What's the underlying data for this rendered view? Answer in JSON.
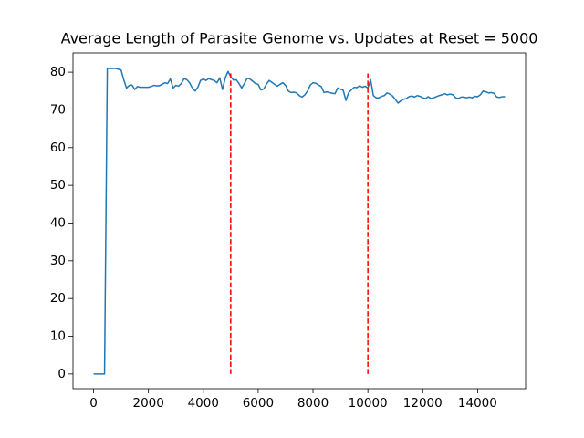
{
  "chart_data": {
    "type": "line",
    "title": "Average Length of Parasite Genome vs. Updates at Reset = 5000",
    "x": [
      0,
      100,
      200,
      300,
      400,
      500,
      600,
      700,
      800,
      900,
      1000,
      1100,
      1200,
      1300,
      1400,
      1500,
      1600,
      1700,
      1800,
      1900,
      2000,
      2100,
      2200,
      2300,
      2400,
      2500,
      2600,
      2700,
      2800,
      2900,
      3000,
      3100,
      3200,
      3300,
      3400,
      3500,
      3600,
      3700,
      3800,
      3900,
      4000,
      4100,
      4200,
      4300,
      4400,
      4500,
      4600,
      4700,
      4800,
      4900,
      5000,
      5100,
      5200,
      5300,
      5400,
      5500,
      5600,
      5700,
      5800,
      5900,
      6000,
      6100,
      6200,
      6300,
      6400,
      6500,
      6600,
      6700,
      6800,
      6900,
      7000,
      7100,
      7200,
      7300,
      7400,
      7500,
      7600,
      7700,
      7800,
      7900,
      8000,
      8100,
      8200,
      8300,
      8400,
      8500,
      8600,
      8700,
      8800,
      8900,
      9000,
      9100,
      9200,
      9300,
      9400,
      9500,
      9600,
      9700,
      9800,
      9900,
      10000,
      10100,
      10200,
      10300,
      10400,
      10500,
      10600,
      10700,
      10800,
      10900,
      11000,
      11100,
      11200,
      11300,
      11400,
      11500,
      11600,
      11700,
      11800,
      11900,
      12000,
      12100,
      12200,
      12300,
      12400,
      12500,
      12600,
      12700,
      12800,
      12900,
      13000,
      13100,
      13200,
      13300,
      13400,
      13500,
      13600,
      13700,
      13800,
      13900,
      14000,
      14100,
      14200,
      14300,
      14400,
      14500,
      14600,
      14700,
      14800,
      14900,
      15000
    ],
    "series": [
      {
        "color": "#1f77b4",
        "values": [
          0,
          0,
          0,
          0,
          0,
          81,
          81,
          81,
          81,
          80.8,
          80.6,
          78,
          75.8,
          76.5,
          76.6,
          75.4,
          76.2,
          76,
          76,
          76,
          76,
          76.2,
          76.5,
          76.4,
          76.4,
          76.8,
          77.2,
          77,
          78.2,
          75.8,
          76.5,
          76.3,
          77,
          78.3,
          78,
          77.2,
          75.8,
          75,
          76,
          77.8,
          78.2,
          77.8,
          78.3,
          78,
          77.8,
          77.2,
          78.5,
          75.4,
          78.5,
          80.2,
          78.8,
          77.9,
          78,
          77,
          75.8,
          77,
          78.4,
          78.2,
          77.6,
          77,
          76.8,
          75.3,
          75.5,
          76.8,
          77.8,
          77.3,
          76.8,
          76.3,
          76.8,
          77.2,
          76.5,
          75,
          74.6,
          74.7,
          74.5,
          73.8,
          73.4,
          74,
          75,
          76.6,
          77.2,
          77.1,
          76.6,
          76.2,
          74.6,
          74.8,
          74.6,
          74.4,
          74.3,
          75.8,
          75.5,
          75.2,
          72.5,
          74.6,
          75.3,
          76,
          75.9,
          76.4,
          76,
          76.3,
          75.8,
          78,
          73.8,
          73.2,
          73.2,
          73.6,
          73.8,
          74.5,
          74.2,
          73.7,
          72.8,
          71.8,
          72.4,
          72.8,
          73,
          73.5,
          73.7,
          73.4,
          73.8,
          73.6,
          73.2,
          73,
          73.5,
          73,
          73.2,
          73.5,
          73.8,
          74,
          74.3,
          74,
          74.2,
          74,
          73.2,
          73,
          73.4,
          73.4,
          73.2,
          73.4,
          73.2,
          73.6,
          73.5,
          74,
          75,
          74.8,
          74.5,
          74.6,
          74.4,
          73.4,
          73.3,
          73.5,
          73.5
        ]
      }
    ],
    "vlines": [
      {
        "x": 5000,
        "ymin": 0,
        "ymax": 80,
        "color": "#ff0000"
      },
      {
        "x": 10000,
        "ymin": 0,
        "ymax": 80,
        "color": "#ff0000"
      }
    ],
    "xlim": [
      -750,
      15750
    ],
    "ylim": [
      -3.9,
      85.1
    ],
    "xticks": [
      0,
      2000,
      4000,
      6000,
      8000,
      10000,
      12000,
      14000
    ],
    "yticks": [
      0,
      10,
      20,
      30,
      40,
      50,
      60,
      70,
      80
    ]
  }
}
